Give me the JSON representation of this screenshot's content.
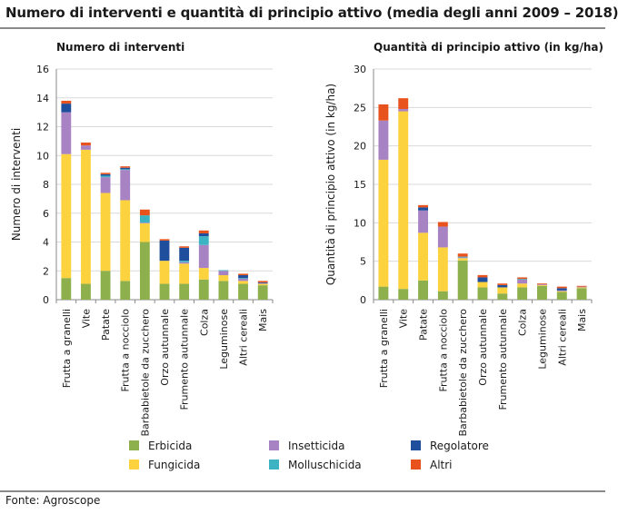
{
  "figure": {
    "title": "Numero di interventi e quantità di principio attivo (media degli anni 2009 – 2018)",
    "source": "Fonte: Agroscope"
  },
  "legend": {
    "items": [
      {
        "name": "Erbicida",
        "color": "#8db04c"
      },
      {
        "name": "Fungicida",
        "color": "#fcd23f"
      },
      {
        "name": "Insetticida",
        "color": "#a883c4"
      },
      {
        "name": "Molluschicida",
        "color": "#3bb3c3"
      },
      {
        "name": "Regolatore",
        "color": "#1f4e9c"
      },
      {
        "name": "Altri",
        "color": "#e8531d"
      }
    ]
  },
  "chart_data": [
    {
      "type": "bar",
      "stacked": true,
      "title": "Numero di interventi",
      "xlabel": "",
      "ylabel": "Numero di interventi",
      "ylim": [
        0,
        16
      ],
      "yticks": [
        0,
        2,
        4,
        6,
        8,
        10,
        12,
        14,
        16
      ],
      "ytick_labels": [
        "0",
        "2",
        "4",
        "6",
        "8",
        "10",
        "12",
        "14",
        "16"
      ],
      "grid": true,
      "categories": [
        "Frutta a granelli",
        "Vite",
        "Patate",
        "Frutta a nocciolo",
        "Barbabietole da zucchero",
        "Orzo autunnale",
        "Frumento autunnale",
        "Colza",
        "Leguminose",
        "Altri cereali",
        "Mais"
      ],
      "series": [
        {
          "name": "Erbicida",
          "values": [
            1.5,
            1.1,
            2.0,
            1.3,
            4.0,
            1.1,
            1.1,
            1.4,
            1.3,
            1.1,
            1.0
          ]
        },
        {
          "name": "Fungicida",
          "values": [
            8.6,
            9.3,
            5.4,
            5.6,
            1.3,
            1.6,
            1.4,
            0.8,
            0.4,
            0.2,
            0.1
          ]
        },
        {
          "name": "Insetticida",
          "values": [
            2.9,
            0.3,
            1.1,
            2.1,
            0.05,
            0.0,
            0.1,
            1.6,
            0.3,
            0.15,
            0.05
          ]
        },
        {
          "name": "Molluschicida",
          "values": [
            0.0,
            0.0,
            0.1,
            0.05,
            0.5,
            0.0,
            0.1,
            0.6,
            0.05,
            0.05,
            0.0
          ]
        },
        {
          "name": "Regolatore",
          "values": [
            0.6,
            0.0,
            0.1,
            0.1,
            0.0,
            1.4,
            0.9,
            0.2,
            0.0,
            0.2,
            0.05
          ]
        },
        {
          "name": "Altri",
          "values": [
            0.2,
            0.2,
            0.1,
            0.1,
            0.4,
            0.1,
            0.1,
            0.2,
            0.0,
            0.1,
            0.1
          ]
        }
      ]
    },
    {
      "type": "bar",
      "stacked": true,
      "title": "Quantità di principio attivo (in kg/ha)",
      "xlabel": "",
      "ylabel": "Quantità di principio attivo (in kg/ha)",
      "ylim": [
        0,
        30
      ],
      "yticks": [
        0,
        5,
        10,
        15,
        20,
        25,
        30
      ],
      "ytick_labels": [
        "0",
        "5",
        "10",
        "15",
        "20",
        "25",
        "30"
      ],
      "grid": true,
      "categories": [
        "Frutta a granelli",
        "Vite",
        "Patate",
        "Frutta a nocciolo",
        "Barbabietole da zucchero",
        "Orzo autunnale",
        "Frumento autunnale",
        "Colza",
        "Leguminose",
        "Altri cereali",
        "Mais"
      ],
      "series": [
        {
          "name": "Erbicida",
          "values": [
            1.7,
            1.4,
            2.5,
            1.1,
            5.1,
            1.6,
            0.8,
            1.6,
            1.8,
            1.0,
            1.5
          ]
        },
        {
          "name": "Fungicida",
          "values": [
            16.5,
            23.1,
            6.2,
            5.7,
            0.3,
            0.7,
            0.8,
            0.5,
            0.1,
            0.1,
            0.1
          ]
        },
        {
          "name": "Insetticida",
          "values": [
            5.1,
            0.3,
            2.9,
            2.7,
            0.1,
            0.0,
            0.0,
            0.5,
            0.1,
            0.1,
            0.1
          ]
        },
        {
          "name": "Molluschicida",
          "values": [
            0.0,
            0.0,
            0.0,
            0.0,
            0.1,
            0.0,
            0.0,
            0.1,
            0.0,
            0.0,
            0.0
          ]
        },
        {
          "name": "Regolatore",
          "values": [
            0.0,
            0.0,
            0.4,
            0.0,
            0.0,
            0.6,
            0.3,
            0.0,
            0.0,
            0.3,
            0.0
          ]
        },
        {
          "name": "Altri",
          "values": [
            2.1,
            1.4,
            0.3,
            0.6,
            0.4,
            0.3,
            0.2,
            0.2,
            0.1,
            0.2,
            0.1
          ]
        }
      ]
    }
  ]
}
